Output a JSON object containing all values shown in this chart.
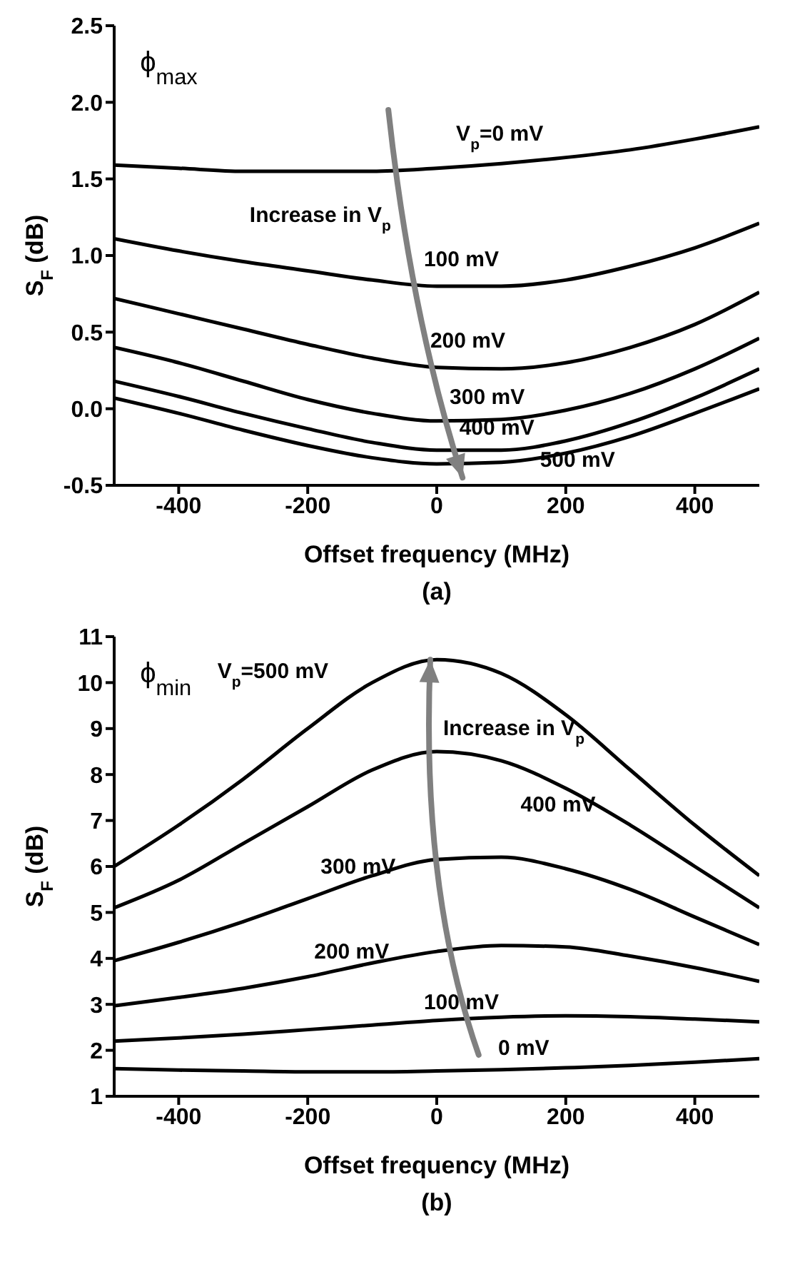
{
  "chart_data": [
    {
      "type": "line",
      "xlabel": "Offset frequency (MHz)",
      "ylabel": "S$_{F}$ (dB)",
      "x": [
        -500,
        -400,
        -300,
        -200,
        -100,
        0,
        100,
        200,
        300,
        400,
        500
      ],
      "series": [
        {
          "name": "V$_{p}$=0 mV",
          "color": "#000000",
          "values": [
            1.59,
            1.57,
            1.55,
            1.55,
            1.55,
            1.57,
            1.6,
            1.64,
            1.69,
            1.76,
            1.84
          ]
        },
        {
          "name": "100 mV",
          "color": "#000000",
          "values": [
            1.11,
            1.03,
            0.96,
            0.9,
            0.84,
            0.8,
            0.8,
            0.84,
            0.93,
            1.05,
            1.21
          ]
        },
        {
          "name": "200 mV",
          "color": "#000000",
          "values": [
            0.72,
            0.62,
            0.52,
            0.42,
            0.33,
            0.27,
            0.26,
            0.3,
            0.4,
            0.55,
            0.76
          ]
        },
        {
          "name": "300 mV",
          "color": "#000000",
          "values": [
            0.4,
            0.3,
            0.18,
            0.06,
            -0.03,
            -0.08,
            -0.07,
            -0.01,
            0.1,
            0.26,
            0.46
          ]
        },
        {
          "name": "400 mV",
          "color": "#000000",
          "values": [
            0.18,
            0.08,
            -0.03,
            -0.13,
            -0.22,
            -0.27,
            -0.27,
            -0.21,
            -0.09,
            0.07,
            0.26
          ]
        },
        {
          "name": "500 mV",
          "color": "#000000",
          "values": [
            0.07,
            -0.03,
            -0.14,
            -0.24,
            -0.32,
            -0.36,
            -0.35,
            -0.29,
            -0.18,
            -0.03,
            0.13
          ]
        }
      ],
      "xlim": [
        -500,
        500
      ],
      "xticks": [
        -400,
        -200,
        0,
        200,
        400
      ],
      "ylim": [
        -0.5,
        2.5
      ],
      "yticks": [
        {
          "value": -0.5,
          "label": "-0.5"
        },
        {
          "value": 0,
          "label": "0.0"
        },
        {
          "value": 0.5,
          "label": "0.5"
        },
        {
          "value": 1,
          "label": "1.0"
        },
        {
          "value": 1.5,
          "label": "1.5"
        },
        {
          "value": 2,
          "label": "2.0"
        },
        {
          "value": 2.5,
          "label": "2.5"
        }
      ],
      "annotations": [
        "ϕ$_{max}$",
        "Increase in V$_{p}$",
        "(a)"
      ],
      "grid": false,
      "legend": false,
      "marker": "none",
      "line_style": "solid"
    },
    {
      "type": "line",
      "xlabel": "Offset frequency (MHz)",
      "ylabel": "S$_{F}$ (dB)",
      "x": [
        -500,
        -400,
        -300,
        -200,
        -100,
        0,
        100,
        200,
        300,
        400,
        500
      ],
      "series": [
        {
          "name": "0 mV",
          "color": "#000000",
          "values": [
            1.6,
            1.57,
            1.55,
            1.53,
            1.53,
            1.55,
            1.58,
            1.62,
            1.67,
            1.74,
            1.82
          ]
        },
        {
          "name": "100 mV",
          "color": "#000000",
          "values": [
            2.2,
            2.27,
            2.35,
            2.45,
            2.55,
            2.65,
            2.72,
            2.75,
            2.73,
            2.68,
            2.62
          ]
        },
        {
          "name": "200 mV",
          "color": "#000000",
          "values": [
            2.97,
            3.15,
            3.35,
            3.6,
            3.9,
            4.15,
            4.28,
            4.25,
            4.05,
            3.8,
            3.5
          ]
        },
        {
          "name": "300 mV",
          "color": "#000000",
          "values": [
            3.95,
            4.35,
            4.8,
            5.3,
            5.8,
            6.15,
            6.2,
            5.95,
            5.5,
            4.9,
            4.3
          ]
        },
        {
          "name": "400 mV",
          "color": "#000000",
          "values": [
            5.1,
            5.7,
            6.5,
            7.3,
            8.1,
            8.5,
            8.3,
            7.7,
            6.9,
            6.0,
            5.1
          ]
        },
        {
          "name": "V$_{p}$=500 mV",
          "color": "#000000",
          "values": [
            6.0,
            6.9,
            7.9,
            9.0,
            10.0,
            10.5,
            10.2,
            9.3,
            8.1,
            6.9,
            5.8
          ]
        }
      ],
      "xlim": [
        -500,
        500
      ],
      "xticks": [
        -400,
        -200,
        0,
        200,
        400
      ],
      "ylim": [
        1,
        11
      ],
      "yticks": [
        1,
        2,
        3,
        4,
        5,
        6,
        7,
        8,
        9,
        10,
        11
      ],
      "annotations": [
        "ϕ$_{min}$",
        "Increase in V$_{p}$",
        "(b)"
      ],
      "grid": false,
      "legend": false,
      "marker": "none",
      "line_style": "solid"
    }
  ]
}
